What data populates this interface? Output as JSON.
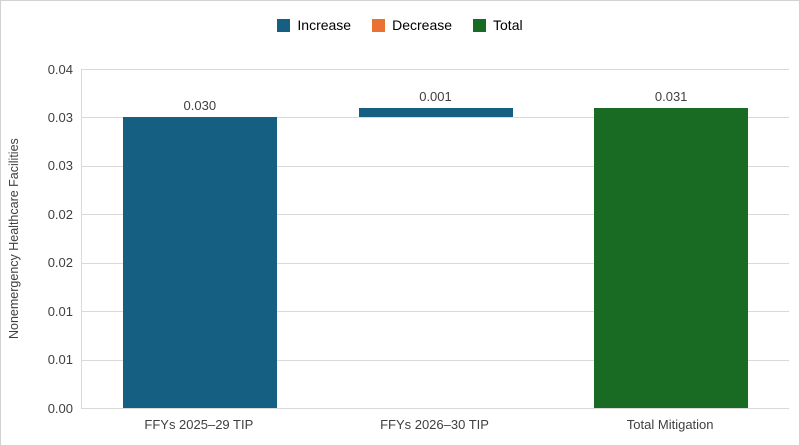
{
  "legend": {
    "items": [
      {
        "label": "Increase",
        "color": "#156082"
      },
      {
        "label": "Decrease",
        "color": "#e97132"
      },
      {
        "label": "Total",
        "color": "#196b24"
      }
    ]
  },
  "chart_data": {
    "type": "bar",
    "subtype": "waterfall",
    "title": "",
    "xlabel": "",
    "ylabel": "Nonemergency Healthcare Facilities",
    "categories": [
      "FFYs 2025–29 TIP",
      "FFYs 2026–30 TIP",
      "Total Mitigation"
    ],
    "series": [
      {
        "name": "Increase",
        "color": "#156082"
      },
      {
        "name": "Decrease",
        "color": "#e97132"
      },
      {
        "name": "Total",
        "color": "#196b24"
      }
    ],
    "bars": [
      {
        "category": "FFYs 2025–29 TIP",
        "series": "Increase",
        "base": 0.0,
        "value": 0.03,
        "label": "0.030",
        "color": "#156082"
      },
      {
        "category": "FFYs 2026–30 TIP",
        "series": "Increase",
        "base": 0.03,
        "value": 0.001,
        "label": "0.001",
        "color": "#156082"
      },
      {
        "category": "Total Mitigation",
        "series": "Total",
        "base": 0.0,
        "value": 0.031,
        "label": "0.031",
        "color": "#196b24"
      }
    ],
    "ylim": [
      0,
      0.035
    ],
    "ytick_step": 0.005,
    "ytick_labels_top_to_bottom": [
      "0.04",
      "0.03",
      "0.03",
      "0.02",
      "0.02",
      "0.01",
      "0.01",
      "0.00"
    ],
    "grid": true,
    "gridline_color": "#d9d9d9",
    "legend_position": "top"
  }
}
